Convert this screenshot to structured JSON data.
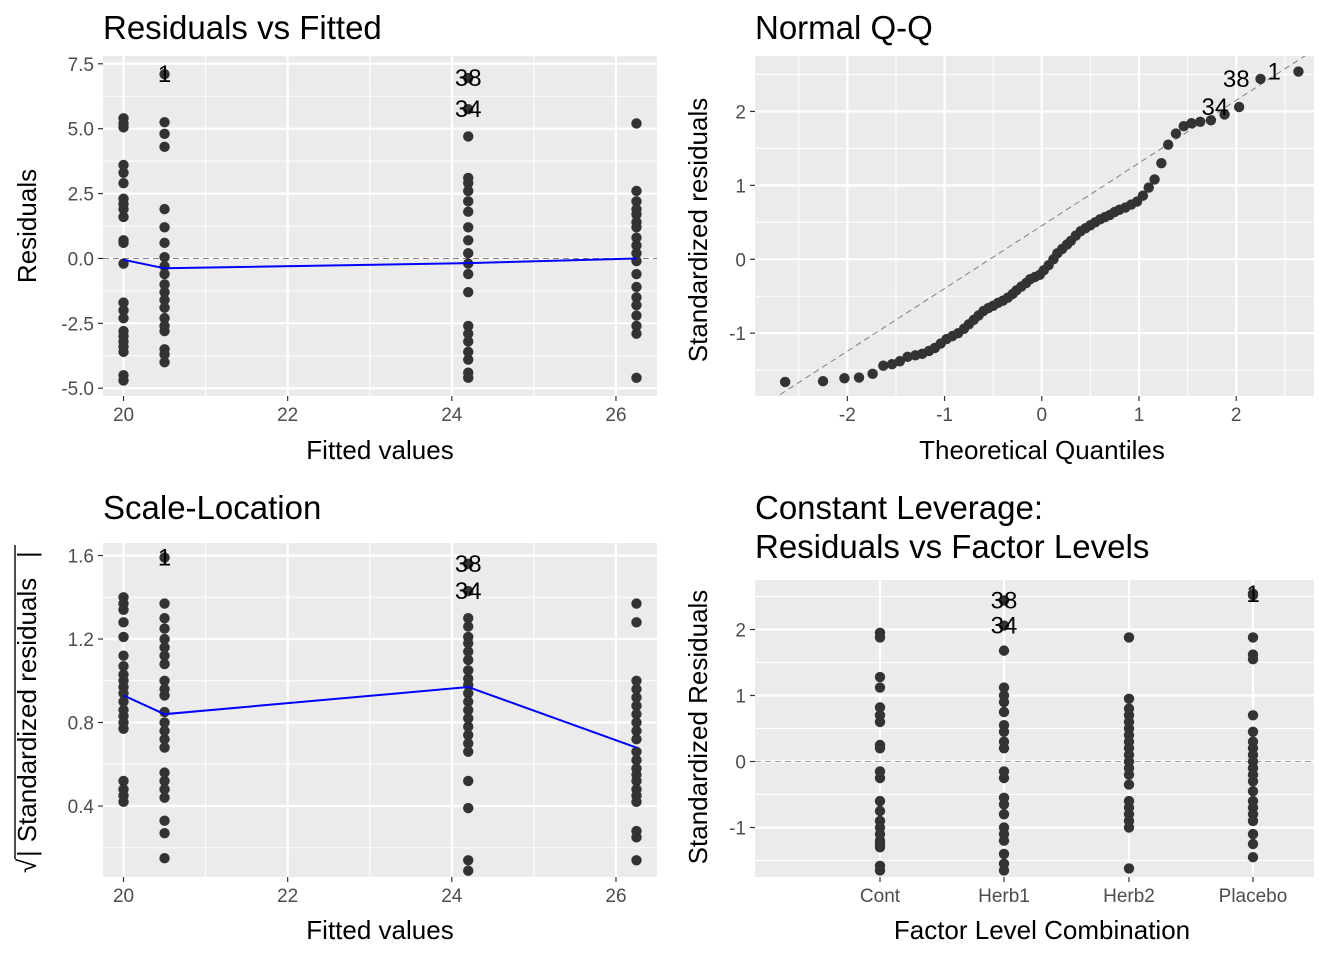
{
  "panel_titles": {
    "rvf": "Residuals vs Fitted",
    "qq": "Normal Q-Q",
    "sl": "Scale-Location",
    "lev_line1": "Constant Leverage:",
    "lev_line2": "Residuals vs Factor Levels"
  },
  "chart_data": [
    {
      "type": "scatter",
      "title": "Residuals vs Fitted",
      "xlabel": "Fitted values",
      "ylabel": "Residuals",
      "xlim": [
        19.75,
        26.5
      ],
      "ylim": [
        -5.3,
        7.8
      ],
      "xticks": [
        20,
        22,
        24,
        26
      ],
      "yticks": [
        -5.0,
        -2.5,
        0.0,
        2.5,
        5.0,
        7.5
      ],
      "ytick_labels": [
        "-5.0",
        "-2.5",
        "0.0",
        "2.5",
        "5.0",
        "7.5"
      ],
      "points": [
        {
          "x": 20.0,
          "y": [
            5.4,
            5.2,
            5.05,
            3.6,
            3.3,
            2.9,
            2.3,
            2.1,
            1.9,
            1.6,
            0.7,
            0.6,
            -0.2,
            -1.7,
            -2.0,
            -2.3,
            -2.8,
            -3.0,
            -3.2,
            -3.4,
            -3.6,
            -4.5,
            -4.7
          ]
        },
        {
          "x": 20.5,
          "y": [
            7.1,
            5.25,
            4.8,
            4.3,
            1.9,
            1.2,
            0.6,
            0.05,
            -0.3,
            -0.6,
            -1.0,
            -1.3,
            -1.6,
            -1.9,
            -2.3,
            -2.6,
            -2.8,
            -3.5,
            -3.7,
            -4.0
          ]
        },
        {
          "x": 24.2,
          "y": [
            6.95,
            5.75,
            4.7,
            3.1,
            2.9,
            2.6,
            2.2,
            1.8,
            1.2,
            0.7,
            0.2,
            -0.2,
            -0.6,
            -1.3,
            -2.6,
            -2.9,
            -3.2,
            -3.6,
            -3.9,
            -4.4,
            -4.6
          ]
        },
        {
          "x": 26.25,
          "y": [
            5.2,
            2.6,
            2.2,
            1.9,
            1.7,
            1.4,
            1.2,
            0.8,
            0.5,
            0.2,
            -0.1,
            -0.6,
            -1.1,
            -1.5,
            -1.8,
            -2.2,
            -2.6,
            -2.9,
            -4.6
          ]
        }
      ],
      "smooth_line": {
        "x": [
          20.0,
          20.5,
          24.2,
          26.25
        ],
        "y": [
          -0.05,
          -0.38,
          -0.18,
          0.0
        ]
      },
      "hline": 0,
      "point_labels": [
        {
          "x": 20.5,
          "y": 7.1,
          "text": "1"
        },
        {
          "x": 24.2,
          "y": 6.95,
          "text": "38"
        },
        {
          "x": 24.2,
          "y": 5.75,
          "text": "34"
        }
      ]
    },
    {
      "type": "scatter",
      "title": "Normal Q-Q",
      "xlabel": "Theoretical Quantiles",
      "ylabel": "Standardized residuals",
      "xlim": [
        -2.95,
        2.8
      ],
      "ylim": [
        -1.85,
        2.75
      ],
      "xticks": [
        -2,
        -1,
        0,
        1,
        2
      ],
      "yticks": [
        -1,
        0,
        1,
        2
      ],
      "qq_points": [
        [
          -2.64,
          -1.66
        ],
        [
          -2.25,
          -1.65
        ],
        [
          -2.03,
          -1.61
        ],
        [
          -1.88,
          -1.6
        ],
        [
          -1.74,
          -1.55
        ],
        [
          -1.63,
          -1.44
        ],
        [
          -1.54,
          -1.42
        ],
        [
          -1.46,
          -1.38
        ],
        [
          -1.38,
          -1.32
        ],
        [
          -1.3,
          -1.3
        ],
        [
          -1.23,
          -1.28
        ],
        [
          -1.16,
          -1.24
        ],
        [
          -1.1,
          -1.2
        ],
        [
          -1.04,
          -1.14
        ],
        [
          -0.98,
          -1.08
        ],
        [
          -0.92,
          -1.04
        ],
        [
          -0.86,
          -1.0
        ],
        [
          -0.8,
          -0.94
        ],
        [
          -0.75,
          -0.88
        ],
        [
          -0.7,
          -0.82
        ],
        [
          -0.65,
          -0.76
        ],
        [
          -0.6,
          -0.7
        ],
        [
          -0.55,
          -0.66
        ],
        [
          -0.5,
          -0.63
        ],
        [
          -0.45,
          -0.59
        ],
        [
          -0.4,
          -0.56
        ],
        [
          -0.35,
          -0.52
        ],
        [
          -0.3,
          -0.47
        ],
        [
          -0.26,
          -0.42
        ],
        [
          -0.21,
          -0.37
        ],
        [
          -0.16,
          -0.32
        ],
        [
          -0.12,
          -0.27
        ],
        [
          -0.07,
          -0.24
        ],
        [
          -0.02,
          -0.21
        ],
        [
          0.02,
          -0.15
        ],
        [
          0.07,
          -0.08
        ],
        [
          0.12,
          0.0
        ],
        [
          0.16,
          0.08
        ],
        [
          0.21,
          0.14
        ],
        [
          0.26,
          0.2
        ],
        [
          0.3,
          0.25
        ],
        [
          0.35,
          0.32
        ],
        [
          0.4,
          0.38
        ],
        [
          0.45,
          0.42
        ],
        [
          0.5,
          0.46
        ],
        [
          0.55,
          0.5
        ],
        [
          0.6,
          0.54
        ],
        [
          0.65,
          0.57
        ],
        [
          0.7,
          0.6
        ],
        [
          0.75,
          0.64
        ],
        [
          0.8,
          0.67
        ],
        [
          0.86,
          0.7
        ],
        [
          0.92,
          0.74
        ],
        [
          0.98,
          0.78
        ],
        [
          1.04,
          0.86
        ],
        [
          1.1,
          0.97
        ],
        [
          1.16,
          1.08
        ],
        [
          1.23,
          1.3
        ],
        [
          1.3,
          1.55
        ],
        [
          1.38,
          1.7
        ],
        [
          1.46,
          1.8
        ],
        [
          1.54,
          1.84
        ],
        [
          1.63,
          1.86
        ],
        [
          1.74,
          1.88
        ],
        [
          1.88,
          1.96
        ],
        [
          2.03,
          2.06
        ],
        [
          2.25,
          2.44
        ],
        [
          2.64,
          2.54
        ]
      ],
      "reference_line": {
        "x": [
          -2.95,
          2.8
        ],
        "y": [
          -2.05,
          2.83
        ]
      },
      "point_labels": [
        {
          "x": 2.64,
          "y": 2.54,
          "text": "1"
        },
        {
          "x": 2.25,
          "y": 2.44,
          "text": "38"
        },
        {
          "x": 2.03,
          "y": 2.06,
          "text": "34"
        }
      ]
    },
    {
      "type": "scatter",
      "title": "Scale-Location",
      "xlabel": "Fitted values",
      "ylabel": "√|Standardized residuals|",
      "ylabel_text": "Standardized residuals",
      "xlim": [
        19.75,
        26.5
      ],
      "ylim": [
        0.06,
        1.66
      ],
      "xticks": [
        20,
        22,
        24,
        26
      ],
      "yticks": [
        0.4,
        0.8,
        1.2,
        1.6
      ],
      "ytick_labels": [
        "0.4",
        "0.8",
        "1.2",
        "1.6"
      ],
      "points": [
        {
          "x": 20.0,
          "y": [
            1.4,
            1.37,
            1.34,
            1.28,
            1.21,
            1.12,
            1.07,
            1.03,
            1.0,
            0.97,
            0.94,
            0.9,
            0.86,
            0.83,
            0.8,
            0.77,
            0.52,
            0.48,
            0.45,
            0.42
          ]
        },
        {
          "x": 20.5,
          "y": [
            1.59,
            1.37,
            1.3,
            1.25,
            1.2,
            1.16,
            1.12,
            1.08,
            1.0,
            0.96,
            0.93,
            0.85,
            0.8,
            0.76,
            0.72,
            0.68,
            0.56,
            0.52,
            0.48,
            0.44,
            0.33,
            0.27,
            0.15
          ]
        },
        {
          "x": 24.2,
          "y": [
            1.56,
            1.43,
            1.3,
            1.26,
            1.21,
            1.18,
            1.14,
            1.1,
            1.05,
            1.01,
            0.98,
            0.94,
            0.9,
            0.86,
            0.82,
            0.78,
            0.74,
            0.7,
            0.66,
            0.52,
            0.39,
            0.14,
            0.09
          ]
        },
        {
          "x": 26.25,
          "y": [
            1.37,
            1.28,
            1.0,
            0.96,
            0.92,
            0.88,
            0.84,
            0.8,
            0.76,
            0.72,
            0.66,
            0.62,
            0.58,
            0.55,
            0.52,
            0.48,
            0.45,
            0.42,
            0.28,
            0.25,
            0.14
          ]
        }
      ],
      "smooth_line": {
        "x": [
          20.0,
          20.5,
          24.2,
          26.25
        ],
        "y": [
          0.93,
          0.84,
          0.97,
          0.68
        ]
      },
      "point_labels": [
        {
          "x": 20.5,
          "y": 1.59,
          "text": "1"
        },
        {
          "x": 24.2,
          "y": 1.56,
          "text": "38"
        },
        {
          "x": 24.2,
          "y": 1.43,
          "text": "34"
        }
      ]
    },
    {
      "type": "scatter",
      "title": "Constant Leverage:\nResiduals vs Factor Levels",
      "xlabel": "Factor Level Combination",
      "ylabel": "Standardized Residuals",
      "categories": [
        "Cont",
        "Herb1",
        "Herb2",
        "Placebo"
      ],
      "ylim": [
        -1.75,
        2.75
      ],
      "yticks": [
        -1,
        0,
        1,
        2
      ],
      "hline": 0,
      "points": [
        {
          "category": "Cont",
          "y": [
            1.95,
            1.88,
            1.28,
            1.12,
            0.82,
            0.7,
            0.6,
            0.25,
            0.2,
            -0.15,
            -0.25,
            -0.6,
            -0.75,
            -0.9,
            -1.0,
            -1.1,
            -1.2,
            -1.25,
            -1.3,
            -1.58,
            -1.65
          ]
        },
        {
          "category": "Herb1",
          "y": [
            2.44,
            2.06,
            1.68,
            1.12,
            1.0,
            0.9,
            0.75,
            0.55,
            0.45,
            0.3,
            0.2,
            -0.15,
            -0.25,
            -0.55,
            -0.65,
            -0.8,
            -1.0,
            -1.1,
            -1.2,
            -1.4,
            -1.55,
            -1.65
          ]
        },
        {
          "category": "Herb2",
          "y": [
            1.88,
            0.95,
            0.8,
            0.7,
            0.6,
            0.5,
            0.4,
            0.3,
            0.2,
            0.1,
            0.0,
            -0.1,
            -0.2,
            -0.35,
            -0.6,
            -0.7,
            -0.8,
            -0.9,
            -1.0,
            -1.62
          ]
        },
        {
          "category": "Placebo",
          "y": [
            2.54,
            2.52,
            1.88,
            1.62,
            1.55,
            0.7,
            0.45,
            0.3,
            0.2,
            0.1,
            0.0,
            -0.1,
            -0.2,
            -0.3,
            -0.45,
            -0.6,
            -0.7,
            -0.8,
            -0.9,
            -1.1,
            -1.25,
            -1.45
          ]
        }
      ],
      "point_labels": [
        {
          "category": "Placebo",
          "y": 2.54,
          "text": "1"
        },
        {
          "category": "Herb1",
          "y": 2.44,
          "text": "38"
        },
        {
          "category": "Herb1",
          "y": 2.06,
          "text": "34"
        }
      ]
    }
  ]
}
